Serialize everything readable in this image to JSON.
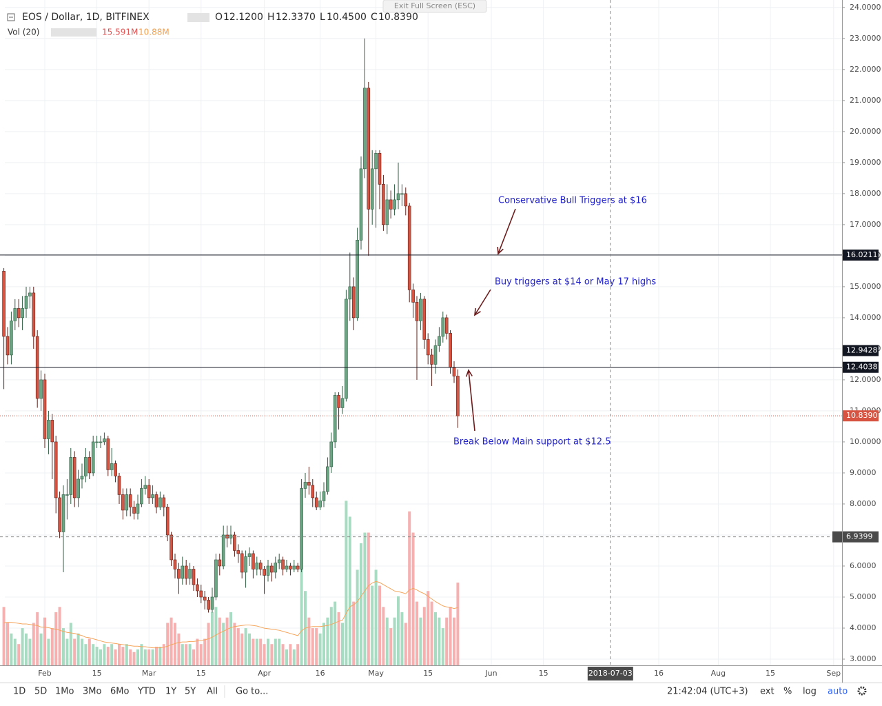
{
  "header": {
    "title": "EOS / Dollar, 1D, BITFINEX",
    "ohlc": [
      {
        "key": "O",
        "value": "12.1200"
      },
      {
        "key": "H",
        "value": "12.3370"
      },
      {
        "key": "L",
        "value": "10.4500"
      },
      {
        "key": "C",
        "value": "10.8390"
      }
    ],
    "tooltip": "Exit Full Screen (ESC)"
  },
  "toolbar": {
    "ranges": [
      "1D",
      "5D",
      "1Mo",
      "3Mo",
      "6Mo",
      "YTD",
      "1Y",
      "5Y",
      "All"
    ],
    "goto": "Go to...",
    "time": "21:42:04 (UTC+3)",
    "ext": "ext",
    "percent": "%",
    "log": "log",
    "auto": "auto"
  },
  "chart_data": {
    "type": "candlestick",
    "up_color": "#6ba583",
    "down_color": "#d75442",
    "open": [
      15.5,
      13.4,
      12.8,
      13.9,
      14.3,
      14.0,
      14.3,
      14.7,
      14.8,
      13.4,
      11.4,
      12.0,
      10.1,
      10.7,
      10.0,
      8.2,
      7.1,
      8.3,
      8.3,
      9.5,
      8.2,
      8.8,
      8.9,
      9.5,
      9.0,
      10.0,
      10.0,
      10.0,
      10.1,
      9.1,
      9.3,
      8.9,
      8.3,
      7.8,
      8.3,
      7.9,
      7.7,
      8.0,
      8.5,
      8.6,
      8.2,
      8.3,
      7.9,
      8.2,
      7.9,
      7.0,
      6.2,
      5.9,
      5.6,
      6.0,
      5.6,
      5.9,
      5.4,
      5.2,
      5.0,
      4.9,
      4.6,
      5.0,
      6.2,
      6.0,
      7.0,
      6.9,
      7.0,
      6.5,
      6.4,
      5.8,
      6.3,
      6.4,
      5.9,
      6.1,
      5.9,
      5.7,
      6.0,
      5.8,
      6.1,
      6.2,
      5.9,
      6.0,
      5.9,
      6.0,
      5.9,
      8.5,
      8.7,
      8.6,
      8.2,
      7.9,
      8.1,
      8.4,
      9.2,
      10.0,
      11.5,
      11.1,
      11.4,
      14.6,
      15.0,
      14.0,
      16.5,
      18.8,
      21.4,
      17.5,
      18.8,
      19.3,
      18.3,
      17.0,
      17.8,
      17.5,
      17.8,
      18.0,
      18.0,
      17.6,
      14.9,
      14.5,
      13.9,
      14.6,
      13.3,
      12.8,
      12.5,
      13.1,
      13.4,
      14.0,
      13.5,
      12.4,
      12.12
    ],
    "high": [
      15.6,
      13.7,
      14.2,
      14.6,
      14.6,
      14.7,
      15.0,
      15.0,
      15.0,
      13.6,
      12.3,
      12.2,
      11.0,
      10.9,
      10.2,
      8.4,
      8.6,
      8.8,
      9.8,
      9.7,
      9.1,
      9.3,
      9.8,
      9.7,
      10.2,
      10.2,
      10.2,
      10.3,
      10.2,
      9.8,
      9.4,
      9.0,
      8.5,
      8.5,
      8.5,
      8.1,
      8.3,
      8.8,
      8.9,
      8.8,
      8.6,
      8.4,
      8.4,
      8.3,
      8.0,
      7.1,
      6.4,
      6.1,
      6.3,
      6.2,
      6.1,
      6.0,
      5.6,
      5.4,
      5.2,
      5.0,
      5.3,
      6.4,
      6.4,
      7.3,
      7.3,
      7.3,
      7.1,
      6.7,
      6.5,
      6.5,
      6.6,
      6.5,
      6.3,
      6.2,
      6.0,
      6.2,
      6.1,
      6.3,
      6.4,
      6.3,
      6.2,
      6.1,
      6.2,
      6.1,
      8.8,
      9.0,
      9.2,
      8.8,
      8.4,
      8.4,
      8.7,
      9.5,
      10.3,
      11.6,
      11.6,
      11.8,
      14.9,
      16.1,
      15.3,
      16.9,
      19.2,
      23.0,
      21.6,
      19.4,
      19.4,
      19.4,
      18.6,
      18.3,
      18.1,
      18.3,
      19.0,
      18.3,
      18.2,
      17.7,
      15.1,
      14.7,
      14.8,
      14.7,
      13.5,
      13.0,
      13.3,
      13.7,
      14.2,
      14.1,
      13.6,
      12.6,
      12.337
    ],
    "low": [
      11.7,
      12.5,
      12.5,
      13.6,
      13.7,
      13.6,
      14.0,
      14.3,
      13.0,
      11.1,
      11.0,
      9.8,
      9.6,
      8.8,
      7.7,
      6.9,
      5.8,
      7.5,
      8.0,
      7.9,
      7.9,
      8.5,
      8.7,
      8.8,
      8.9,
      9.8,
      9.8,
      9.9,
      8.9,
      8.9,
      8.7,
      8.0,
      7.5,
      7.6,
      7.6,
      7.5,
      7.5,
      7.9,
      8.3,
      8.0,
      8.0,
      7.7,
      7.8,
      7.6,
      6.8,
      6.0,
      5.6,
      5.1,
      5.4,
      5.4,
      5.4,
      5.2,
      5.0,
      4.8,
      4.6,
      4.5,
      4.5,
      4.9,
      5.7,
      5.9,
      6.6,
      6.7,
      6.3,
      6.1,
      5.6,
      5.3,
      6.0,
      5.6,
      5.7,
      5.7,
      5.1,
      5.5,
      5.5,
      5.6,
      5.9,
      5.7,
      5.8,
      5.7,
      5.8,
      5.8,
      5.8,
      8.2,
      8.3,
      7.9,
      7.8,
      7.8,
      7.9,
      8.3,
      9.0,
      9.8,
      10.4,
      10.9,
      11.3,
      13.9,
      13.6,
      13.9,
      16.2,
      18.5,
      16.0,
      17.0,
      16.9,
      17.5,
      16.8,
      16.7,
      17.2,
      17.3,
      17.5,
      17.6,
      17.3,
      14.5,
      14.0,
      12.0,
      13.6,
      13.0,
      12.5,
      11.8,
      12.2,
      12.9,
      13.2,
      13.3,
      12.2,
      11.9,
      10.45
    ],
    "close": [
      13.4,
      12.8,
      13.9,
      14.3,
      14.0,
      14.3,
      14.7,
      14.8,
      13.4,
      11.4,
      12.0,
      10.1,
      10.7,
      10.0,
      8.2,
      7.1,
      8.3,
      8.3,
      9.5,
      8.2,
      8.8,
      8.9,
      9.5,
      9.0,
      10.0,
      10.0,
      10.0,
      10.1,
      9.1,
      9.3,
      8.9,
      8.3,
      7.8,
      8.3,
      7.9,
      7.7,
      8.0,
      8.5,
      8.6,
      8.2,
      8.3,
      7.9,
      8.2,
      7.9,
      7.0,
      6.2,
      5.9,
      5.6,
      6.0,
      5.6,
      5.9,
      5.4,
      5.2,
      5.0,
      4.9,
      4.6,
      5.0,
      6.2,
      6.0,
      7.0,
      6.9,
      7.0,
      6.5,
      6.4,
      5.8,
      6.3,
      6.4,
      5.9,
      6.1,
      5.9,
      5.7,
      6.0,
      5.8,
      6.1,
      6.2,
      5.9,
      6.0,
      5.9,
      6.0,
      5.9,
      8.5,
      8.7,
      8.6,
      8.2,
      7.9,
      8.1,
      8.4,
      9.2,
      10.0,
      11.5,
      11.1,
      11.4,
      14.6,
      15.0,
      14.0,
      16.5,
      18.8,
      21.4,
      17.5,
      18.8,
      19.3,
      18.3,
      17.0,
      17.8,
      17.5,
      17.8,
      18.0,
      18.0,
      17.6,
      14.9,
      14.5,
      13.9,
      14.6,
      13.3,
      12.8,
      12.5,
      13.1,
      13.4,
      14.0,
      13.5,
      12.4,
      12.12,
      10.839
    ],
    "volume": {
      "name": "Vol (20)",
      "value_label": "15.591M",
      "ma_label": "10.88M",
      "up_color": "#a8dcc2",
      "down_color": "#f6b0b0",
      "ma_color": "#f5a55b",
      "values": [
        11,
        8,
        6,
        5,
        4,
        7,
        6,
        5,
        8,
        10,
        6,
        9,
        5,
        7,
        10,
        11,
        7,
        5,
        8,
        5,
        6,
        5,
        4,
        5,
        4,
        3.5,
        3,
        4,
        3.5,
        4,
        3,
        4,
        3.5,
        4,
        3,
        2.5,
        3,
        4,
        3,
        3,
        3,
        3.5,
        3.5,
        4,
        8,
        9,
        8,
        6,
        4,
        4,
        4,
        3,
        5,
        4,
        5,
        8,
        10,
        11,
        9,
        8,
        9,
        10,
        8,
        7,
        6,
        7,
        6,
        5,
        5,
        5,
        4,
        5,
        4,
        5,
        5,
        4,
        3,
        4,
        3,
        4,
        25,
        14,
        9,
        7,
        7,
        6,
        8,
        9,
        11,
        12,
        10,
        8,
        31,
        28,
        12,
        18,
        23,
        25,
        25,
        15,
        18,
        15,
        11,
        9,
        7,
        9,
        13,
        10,
        8,
        29,
        25,
        12,
        9,
        11,
        14,
        12,
        10,
        9,
        7,
        9,
        11,
        9,
        15.591
      ],
      "ma": [
        8,
        8.1,
        8.1,
        8,
        7.9,
        7.8,
        7.8,
        7.7,
        7.6,
        7.5,
        7.2,
        7.2,
        7.1,
        6.9,
        6.8,
        6.6,
        6.4,
        6.2,
        6.1,
        6.0,
        5.8,
        5.6,
        5.3,
        5.2,
        5.0,
        4.8,
        4.6,
        4.4,
        4.3,
        4.2,
        4.1,
        4.0,
        3.9,
        3.8,
        3.7,
        3.6,
        3.6,
        3.5,
        3.5,
        3.4,
        3.3,
        3.3,
        3.3,
        3.4,
        3.6,
        3.9,
        4.1,
        4.3,
        4.4,
        4.4,
        4.5,
        4.5,
        4.6,
        4.7,
        4.8,
        5.0,
        5.3,
        5.7,
        6.1,
        6.4,
        6.8,
        7.1,
        7.3,
        7.4,
        7.5,
        7.6,
        7.6,
        7.5,
        7.4,
        7.2,
        7.0,
        6.9,
        6.8,
        6.7,
        6.6,
        6.4,
        6.2,
        6.0,
        5.8,
        5.6,
        6.5,
        7.0,
        7.2,
        7.3,
        7.3,
        7.3,
        7.4,
        7.5,
        7.7,
        8.0,
        8.3,
        8.5,
        9.8,
        11.0,
        11.4,
        12.0,
        13.0,
        14.0,
        15.0,
        15.5,
        15.8,
        15.6,
        15.2,
        14.8,
        14.4,
        14.0,
        13.9,
        13.7,
        13.5,
        14.2,
        14.5,
        14.2,
        13.8,
        13.5,
        13.0,
        12.5,
        12.0,
        11.6,
        11.2,
        11.0,
        10.9,
        10.7,
        10.88
      ]
    },
    "ylim": [
      2.8,
      24.24
    ],
    "yticks": [
      {
        "value": 3,
        "label": "3.0000"
      },
      {
        "value": 4,
        "label": "4.0000"
      },
      {
        "value": 5,
        "label": "5.0000"
      },
      {
        "value": 6,
        "label": "6.0000"
      },
      {
        "value": 7,
        "label": "7.0000"
      },
      {
        "value": 8,
        "label": "8.0000"
      },
      {
        "value": 9,
        "label": "9.0000"
      },
      {
        "value": 10,
        "label": "10.0000"
      },
      {
        "value": 11,
        "label": "11.0000"
      },
      {
        "value": 12,
        "label": "12.0000"
      },
      {
        "value": 13,
        "label": "13.0000"
      },
      {
        "value": 14,
        "label": "14.0000"
      },
      {
        "value": 15,
        "label": "15.0000"
      },
      {
        "value": 16,
        "label": "16.0000"
      },
      {
        "value": 17,
        "label": "17.0000"
      },
      {
        "value": 18,
        "label": "18.0000"
      },
      {
        "value": 19,
        "label": "19.0000"
      },
      {
        "value": 20,
        "label": "20.0000"
      },
      {
        "value": 21,
        "label": "21.0000"
      },
      {
        "value": 22,
        "label": "22.0000"
      },
      {
        "value": 23,
        "label": "23.0000"
      },
      {
        "value": 24,
        "label": "24.0000"
      }
    ],
    "xlim": [
      0.26,
      225.26
    ],
    "xticks": [
      {
        "value": 11,
        "label": "Feb"
      },
      {
        "value": 25,
        "label": "15"
      },
      {
        "value": 39,
        "label": "Mar"
      },
      {
        "value": 53,
        "label": "15"
      },
      {
        "value": 70,
        "label": "Apr"
      },
      {
        "value": 85,
        "label": "16"
      },
      {
        "value": 100,
        "label": "May"
      },
      {
        "value": 114,
        "label": "15"
      },
      {
        "value": 131,
        "label": "Jun"
      },
      {
        "value": 145,
        "label": "15"
      },
      {
        "value": 176,
        "label": "16"
      },
      {
        "value": 192,
        "label": "Aug"
      },
      {
        "value": 206,
        "label": "15"
      },
      {
        "value": 223,
        "label": "Sep"
      }
    ],
    "grid": true,
    "hlines": [
      16.0211,
      12.4038
    ],
    "markers": [
      12.9428
    ],
    "last_price": {
      "value": 10.839,
      "label": "10.8390"
    },
    "crosshair": {
      "y": 6.9399,
      "x": {
        "value": 163,
        "label": "2018-07-03"
      }
    },
    "annotations": [
      "Conservative Bull Triggers at $16",
      "Buy triggers at $14 or May 17 highs",
      "Break Below Main support at $12.5"
    ]
  }
}
